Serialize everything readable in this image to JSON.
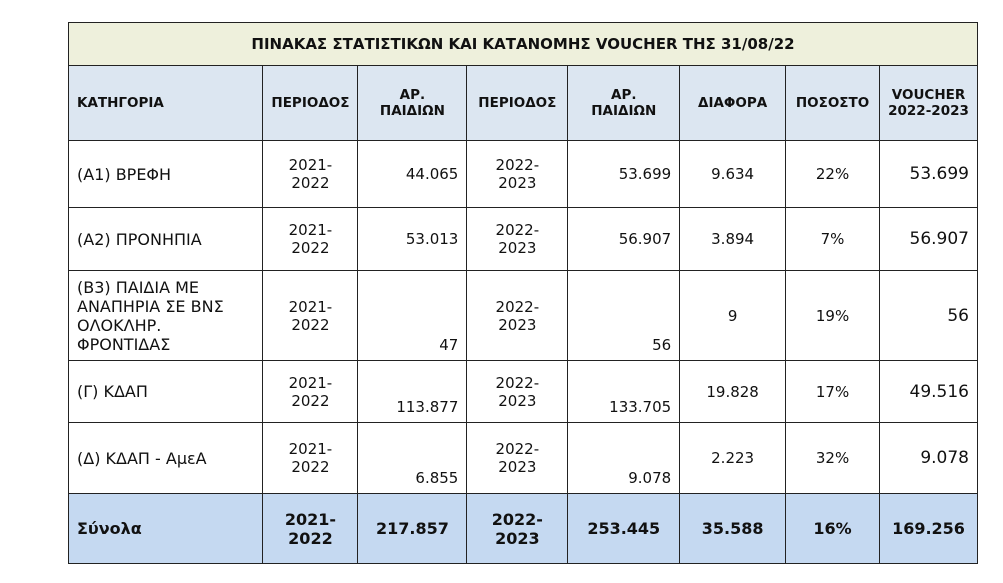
{
  "table": {
    "title": "ΠΙΝΑΚΑΣ ΣΤΑΤΙΣΤΙΚΩΝ ΚΑΙ ΚΑΤΑΝΟΜΗΣ VOUCHER ΤΗΣ 31/08/22",
    "headers": [
      "ΚΑΤΗΓΟΡΙΑ",
      "ΠΕΡΙΟΔΟΣ",
      "ΑΡ. ΠΑΙΔΙΩΝ",
      "ΠΕΡΙΟΔΟΣ",
      "ΑΡ. ΠΑΙΔΙΩΝ",
      "ΔΙΑΦΟΡΑ",
      "ΠΟΣΟΣΤΟ",
      "VOUCHER 2022-2023"
    ],
    "rows": [
      [
        "(Α1) ΒΡΕΦΗ",
        "2021-2022",
        "44.065",
        "2022-2023",
        "53.699",
        "9.634",
        "22%",
        "53.699"
      ],
      [
        "(Α2) ΠΡΟΝΗΠΙΑ",
        "2021-2022",
        "53.013",
        "2022-2023",
        "56.907",
        "3.894",
        "7%",
        "56.907"
      ],
      [
        "(Β3) ΠΑΙΔΙΑ ΜΕ ΑΝΑΠΗΡΙΑ ΣΕ ΒΝΣ ΟΛΟΚΛΗΡ. ΦΡΟΝΤΙΔΑΣ",
        "2021-2022",
        "47",
        "2022-2023",
        "56",
        "9",
        "19%",
        "56"
      ],
      [
        "(Γ) ΚΔΑΠ",
        "2021-2022",
        "113.877",
        "2022-2023",
        "133.705",
        "19.828",
        "17%",
        "49.516"
      ],
      [
        "(Δ) ΚΔΑΠ - ΑμεΑ",
        "2021-2022",
        "6.855",
        "2022-2023",
        "9.078",
        "2.223",
        "32%",
        "9.078"
      ]
    ],
    "totals": [
      "Σύνολα",
      "2021-2022",
      "217.857",
      "2022-2023",
      "253.445",
      "35.588",
      "16%",
      "169.256"
    ]
  }
}
